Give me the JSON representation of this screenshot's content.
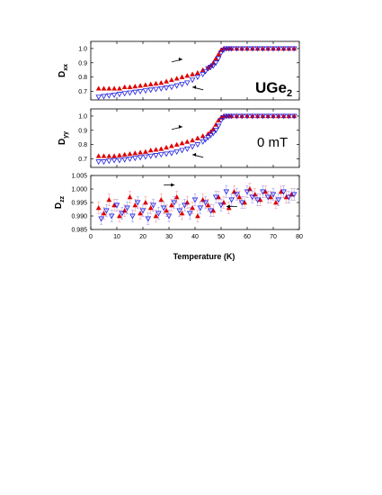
{
  "colors": {
    "heating": "#e00000",
    "cooling": "#2020e0",
    "heating_error": "#f4a0a0",
    "cooling_error": "#a0a0f4"
  },
  "annotations": {
    "material": "UGe",
    "material_subscript": "2",
    "field": "0 mT"
  },
  "chart_data": [
    {
      "type": "scatter",
      "name": "Dxx",
      "ylabel": "D",
      "ylabel_sub": "xx",
      "xlim": [
        0,
        80
      ],
      "ylim": [
        0.64,
        1.05
      ],
      "yticks": [
        0.7,
        0.8,
        0.9,
        1.0
      ],
      "ytick_labels": [
        "0.7",
        "0.8",
        "0.9",
        "1.0"
      ],
      "grid": false,
      "series": [
        {
          "marker": "filled-up-triangle",
          "color": "heating",
          "arrow": "right",
          "x": [
            3,
            5,
            7,
            9,
            11,
            13,
            15,
            17,
            19,
            21,
            23,
            25,
            27,
            29,
            31,
            33,
            35,
            37,
            39,
            41,
            43,
            45,
            46,
            47,
            48,
            49,
            50,
            51,
            52,
            53,
            54,
            56,
            58,
            60,
            62,
            64,
            66,
            68,
            70,
            72,
            74,
            76,
            78
          ],
          "y": [
            0.72,
            0.72,
            0.72,
            0.72,
            0.72,
            0.73,
            0.73,
            0.735,
            0.74,
            0.745,
            0.75,
            0.755,
            0.76,
            0.77,
            0.78,
            0.79,
            0.8,
            0.81,
            0.82,
            0.83,
            0.85,
            0.865,
            0.88,
            0.9,
            0.93,
            0.96,
            0.99,
            1.0,
            1.0,
            1.0,
            1.0,
            1.0,
            1.0,
            1.0,
            1.0,
            1.0,
            1.0,
            1.0,
            1.0,
            1.0,
            1.0,
            1.0,
            1.0
          ]
        },
        {
          "marker": "open-down-triangle",
          "color": "cooling",
          "arrow": "left",
          "x": [
            3,
            5,
            7,
            9,
            11,
            13,
            15,
            17,
            19,
            21,
            23,
            25,
            27,
            29,
            31,
            33,
            35,
            37,
            39,
            41,
            43,
            44,
            45,
            46,
            47,
            48,
            49,
            50,
            51,
            52,
            53,
            54,
            56,
            58,
            60,
            62,
            64,
            66,
            68,
            70,
            72,
            74,
            76,
            78
          ],
          "y": [
            0.66,
            0.665,
            0.67,
            0.675,
            0.68,
            0.685,
            0.69,
            0.695,
            0.7,
            0.705,
            0.71,
            0.715,
            0.72,
            0.725,
            0.73,
            0.74,
            0.75,
            0.76,
            0.78,
            0.8,
            0.82,
            0.84,
            0.86,
            0.87,
            0.88,
            0.9,
            0.93,
            0.97,
            0.99,
            1.0,
            1.0,
            1.0,
            1.0,
            1.0,
            1.0,
            1.0,
            1.0,
            1.0,
            1.0,
            1.0,
            1.0,
            1.0,
            1.0,
            1.0
          ]
        }
      ]
    },
    {
      "type": "scatter",
      "name": "Dyy",
      "ylabel": "D",
      "ylabel_sub": "yy",
      "xlim": [
        0,
        80
      ],
      "ylim": [
        0.64,
        1.05
      ],
      "yticks": [
        0.7,
        0.8,
        0.9,
        1.0
      ],
      "ytick_labels": [
        "0.7",
        "0.8",
        "0.9",
        "1.0"
      ],
      "grid": false,
      "series": [
        {
          "marker": "filled-up-triangle",
          "color": "heating",
          "arrow": "right",
          "x": [
            3,
            5,
            7,
            9,
            11,
            13,
            15,
            17,
            19,
            21,
            23,
            25,
            27,
            29,
            31,
            33,
            35,
            37,
            39,
            41,
            43,
            45,
            46,
            47,
            48,
            49,
            50,
            51,
            52,
            53,
            54,
            56,
            58,
            60,
            62,
            64,
            66,
            68,
            70,
            72,
            74,
            76,
            78
          ],
          "y": [
            0.72,
            0.72,
            0.72,
            0.72,
            0.725,
            0.73,
            0.735,
            0.74,
            0.745,
            0.75,
            0.76,
            0.765,
            0.77,
            0.78,
            0.79,
            0.8,
            0.81,
            0.82,
            0.83,
            0.845,
            0.86,
            0.875,
            0.89,
            0.91,
            0.94,
            0.97,
            0.99,
            1.0,
            1.0,
            1.0,
            1.0,
            1.0,
            1.0,
            1.0,
            1.0,
            1.0,
            1.0,
            1.0,
            1.0,
            1.0,
            1.0,
            1.0,
            1.0
          ]
        },
        {
          "marker": "open-down-triangle",
          "color": "cooling",
          "arrow": "left",
          "x": [
            3,
            5,
            7,
            9,
            11,
            13,
            15,
            17,
            19,
            21,
            23,
            25,
            27,
            29,
            31,
            33,
            35,
            37,
            39,
            41,
            43,
            44,
            45,
            46,
            47,
            48,
            49,
            50,
            51,
            52,
            53,
            54,
            56,
            58,
            60,
            62,
            64,
            66,
            68,
            70,
            72,
            74,
            76,
            78
          ],
          "y": [
            0.68,
            0.68,
            0.685,
            0.69,
            0.69,
            0.695,
            0.7,
            0.705,
            0.71,
            0.715,
            0.72,
            0.725,
            0.73,
            0.735,
            0.74,
            0.75,
            0.76,
            0.77,
            0.785,
            0.8,
            0.82,
            0.835,
            0.85,
            0.865,
            0.88,
            0.9,
            0.93,
            0.97,
            0.99,
            1.0,
            1.0,
            1.0,
            1.0,
            1.0,
            1.0,
            1.0,
            1.0,
            1.0,
            1.0,
            1.0,
            1.0,
            1.0,
            1.0,
            1.0
          ]
        }
      ]
    },
    {
      "type": "scatter",
      "name": "Dzz",
      "ylabel": "D",
      "ylabel_sub": "zz",
      "xlabel": "Temperature (K)",
      "xlim": [
        0,
        80
      ],
      "ylim": [
        0.985,
        1.005
      ],
      "xticks": [
        0,
        10,
        20,
        30,
        40,
        50,
        60,
        70,
        80
      ],
      "xtick_labels": [
        "0",
        "10",
        "20",
        "30",
        "40",
        "50",
        "60",
        "70",
        "80"
      ],
      "yticks": [
        0.985,
        0.99,
        0.995,
        1.0,
        1.005
      ],
      "ytick_labels": [
        "0.985",
        "0.990",
        "0.995",
        "1.000",
        "1.005"
      ],
      "grid": false,
      "error_bar": 0.0022,
      "series": [
        {
          "marker": "filled-up-triangle",
          "color": "heating",
          "arrow": "right",
          "x": [
            3,
            5,
            7,
            9,
            11,
            13,
            15,
            17,
            19,
            21,
            23,
            25,
            27,
            29,
            31,
            33,
            35,
            37,
            39,
            41,
            43,
            45,
            47,
            49,
            51,
            53,
            55,
            57,
            59,
            61,
            63,
            65,
            67,
            69,
            71,
            73,
            75,
            77
          ],
          "y": [
            0.993,
            0.991,
            0.996,
            0.994,
            0.99,
            0.992,
            0.997,
            0.994,
            0.991,
            0.995,
            0.993,
            0.99,
            0.996,
            0.992,
            0.994,
            0.997,
            0.991,
            0.995,
            0.993,
            0.99,
            0.996,
            0.994,
            0.992,
            0.997,
            0.995,
            0.993,
            0.999,
            0.997,
            0.995,
            1.0,
            0.998,
            0.996,
            0.999,
            0.997,
            0.995,
            0.999,
            0.997,
            0.998
          ]
        },
        {
          "marker": "open-down-triangle",
          "color": "cooling",
          "arrow": "left",
          "x": [
            4,
            6,
            8,
            10,
            12,
            14,
            16,
            18,
            20,
            22,
            24,
            26,
            28,
            30,
            32,
            34,
            36,
            38,
            40,
            42,
            44,
            46,
            48,
            50,
            52,
            54,
            56,
            58,
            60,
            62,
            64,
            66,
            68,
            70,
            72,
            74,
            76,
            78
          ],
          "y": [
            0.989,
            0.992,
            0.99,
            0.994,
            0.991,
            0.993,
            0.99,
            0.995,
            0.992,
            0.989,
            0.994,
            0.991,
            0.993,
            0.99,
            0.995,
            0.992,
            0.994,
            0.991,
            0.996,
            0.993,
            0.995,
            0.992,
            0.997,
            0.994,
            0.999,
            0.996,
            0.998,
            0.995,
            0.999,
            0.997,
            0.996,
            0.999,
            0.997,
            0.998,
            0.996,
            0.999,
            0.997,
            0.998
          ]
        }
      ]
    }
  ]
}
